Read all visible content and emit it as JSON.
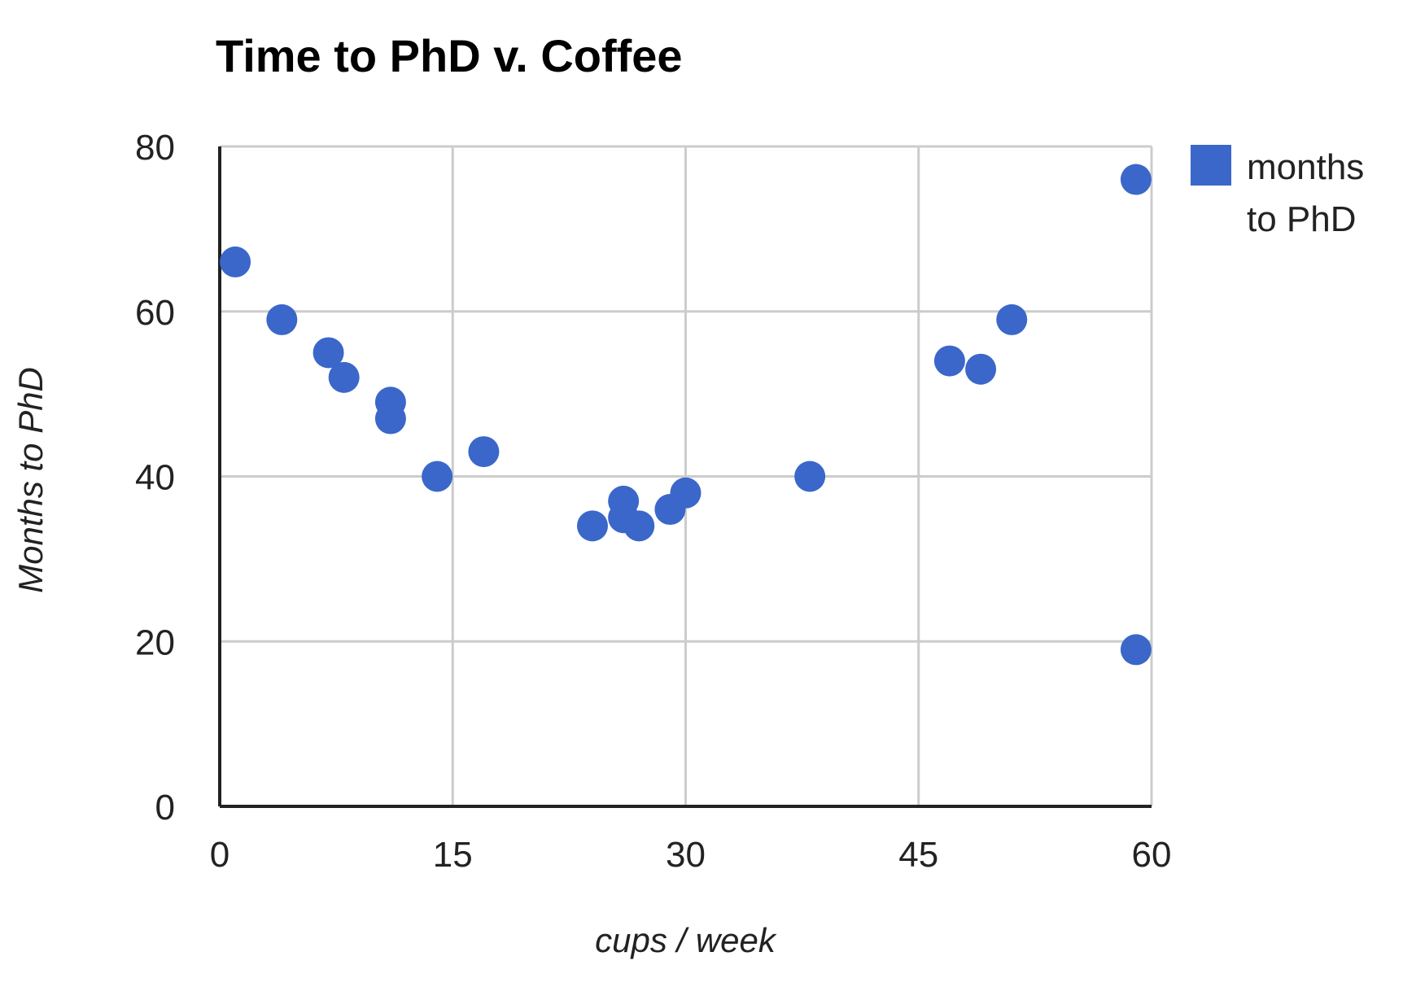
{
  "chart_data": {
    "type": "scatter",
    "title": "Time to PhD v. Coffee",
    "xlabel": "cups / week",
    "ylabel": "Months to PhD",
    "xlim": [
      0,
      60
    ],
    "ylim": [
      0,
      80
    ],
    "xticks": [
      "0",
      "15",
      "30",
      "45",
      "60"
    ],
    "yticks": [
      "0",
      "20",
      "40",
      "60",
      "80"
    ],
    "xtick_values": [
      0,
      15,
      30,
      45,
      60
    ],
    "ytick_values": [
      0,
      20,
      40,
      60,
      80
    ],
    "grid": true,
    "legend_position": "top-right",
    "series": [
      {
        "name": "months to PhD",
        "legend_lines": [
          "months",
          "to PhD"
        ],
        "color": "#3a67c9",
        "points": [
          {
            "x": 1,
            "y": 66
          },
          {
            "x": 4,
            "y": 59
          },
          {
            "x": 7,
            "y": 55
          },
          {
            "x": 8,
            "y": 52
          },
          {
            "x": 11,
            "y": 49
          },
          {
            "x": 11,
            "y": 47
          },
          {
            "x": 14,
            "y": 40
          },
          {
            "x": 17,
            "y": 43
          },
          {
            "x": 24,
            "y": 34
          },
          {
            "x": 26,
            "y": 37
          },
          {
            "x": 26,
            "y": 35
          },
          {
            "x": 27,
            "y": 34
          },
          {
            "x": 29,
            "y": 36
          },
          {
            "x": 30,
            "y": 38
          },
          {
            "x": 38,
            "y": 40
          },
          {
            "x": 47,
            "y": 54
          },
          {
            "x": 49,
            "y": 53
          },
          {
            "x": 51,
            "y": 59
          },
          {
            "x": 59,
            "y": 76
          },
          {
            "x": 59,
            "y": 19
          }
        ]
      }
    ]
  },
  "colors": {
    "axis": "#222222",
    "grid": "#cccccc",
    "tick_text": "#222222",
    "title_text": "#000000",
    "label_text": "#222222"
  }
}
